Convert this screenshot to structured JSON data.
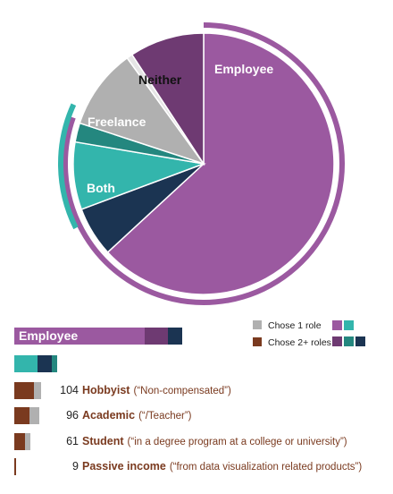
{
  "colors": {
    "employee": "#9b59a0",
    "employee_dark": "#6e3a72",
    "freelance": "#33b5ac",
    "freelance_dark": "#24877f",
    "both": "#1b3452",
    "neither": "#b0b0b0",
    "multi": "#7a3a1f",
    "bg": "#ffffff"
  },
  "legend": {
    "one_role": "Chose 1 role",
    "multi_roles": "Chose 2+ roles"
  },
  "chart_data": {
    "type": "pie",
    "slices": [
      {
        "label": "Employee",
        "value": 69.6,
        "color": "#9b59a0"
      },
      {
        "label": "Both",
        "value": 6.8,
        "color": "#1b3452"
      },
      {
        "label": "Freelance",
        "value": 9.2,
        "color": "#33b5ac"
      },
      {
        "label": "",
        "value": 2.6,
        "color": "#24877f"
      },
      {
        "label": "Neither",
        "value": 11.0,
        "color": "#b0b0b0"
      },
      {
        "label": "",
        "value": 0.8,
        "color": "#e5e5e5"
      },
      {
        "label": "Employee",
        "value": 10.2,
        "color": "#6e3a72"
      }
    ],
    "outer_arcs": [
      {
        "group": "Employee",
        "start_pct": 0,
        "end_pct": 80.4,
        "color": "#9b59a0"
      },
      {
        "group": "Freelance",
        "start_pct": 67.6,
        "end_pct": 81.8,
        "color": "#33b5ac"
      }
    ],
    "bars": [
      {
        "label": "Employee",
        "segments": [
          {
            "value": 146,
            "color": "#9b59a0"
          },
          {
            "value": 26,
            "color": "#6e3a72"
          },
          {
            "value": 16,
            "color": "#1b3452"
          }
        ]
      },
      {
        "label": "",
        "segments": [
          {
            "value": 26,
            "color": "#33b5ac"
          },
          {
            "value": 16,
            "color": "#1b3452"
          },
          {
            "value": 6,
            "color": "#24877f"
          }
        ]
      }
    ],
    "categories": [
      {
        "count": 104,
        "name": "Hobbyist",
        "desc": "(“Non-compensated”)",
        "multi": 22,
        "single": 8
      },
      {
        "count": 96,
        "name": "Academic",
        "desc": "(“/Teacher”)",
        "multi": 17,
        "single": 11
      },
      {
        "count": 61,
        "name": "Student",
        "desc": "(“in a degree program at a college or university”)",
        "multi": 12,
        "single": 6
      },
      {
        "count": 9,
        "name": "Passive income",
        "desc": "(“from data visualization related products”)",
        "multi": 2,
        "single": 0
      }
    ]
  }
}
